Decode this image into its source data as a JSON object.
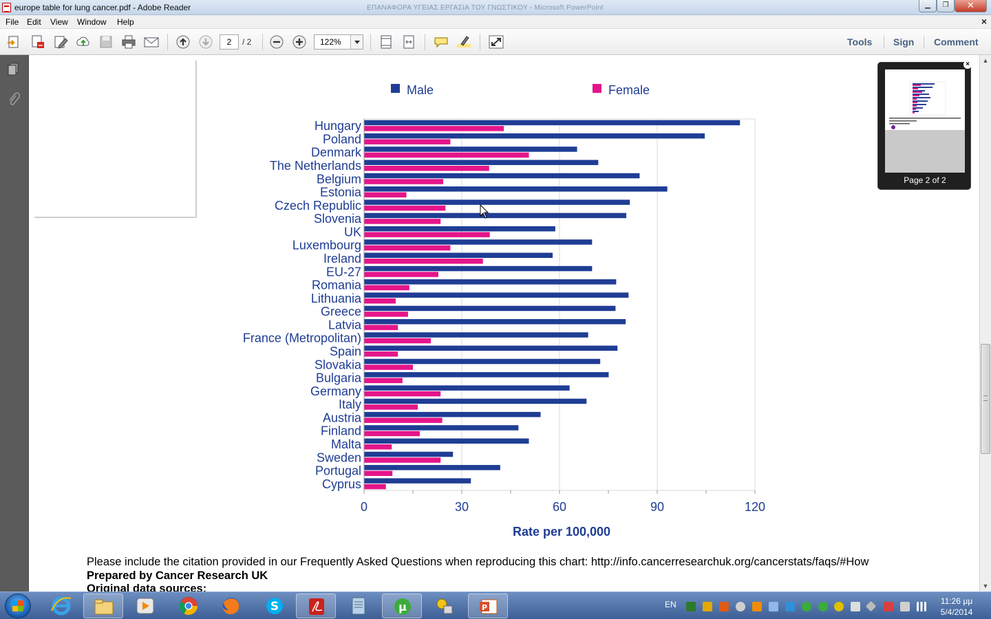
{
  "window": {
    "title": "europe table for lung cancer.pdf - Adobe Reader",
    "background_title": "ΕΠΑΝΑΦΟΡΑ ΥΓΕΙΑΣ ΕΡΓΑΣΙΑ ΤΟΥ ΓΝΩΣΤΙΚΟΥ - Microsoft PowerPoint"
  },
  "menu": {
    "file": "File",
    "edit": "Edit",
    "view": "View",
    "window": "Window",
    "help": "Help",
    "close_doc": "×"
  },
  "toolbar": {
    "current_page": "2",
    "page_total": "/ 2",
    "zoom": "122%",
    "tools": "Tools",
    "sign": "Sign",
    "comment": "Comment"
  },
  "thumbnail": {
    "label": "Page 2 of 2",
    "close": "×"
  },
  "document": {
    "note_citation": "Please include the citation provided in our Frequently Asked Questions when reproducing this chart: http://info.cancerresearchuk.org/cancerstats/faqs/#How",
    "note_prepared": "Prepared by Cancer Research UK",
    "note_sources": "Original data sources:"
  },
  "chart_data": {
    "type": "bar",
    "orientation": "horizontal",
    "categories": [
      "Hungary",
      "Poland",
      "Denmark",
      "The Netherlands",
      "Belgium",
      "Estonia",
      "Czech Republic",
      "Slovenia",
      "UK",
      "Luxembourg",
      "Ireland",
      "EU-27",
      "Romania",
      "Lithuania",
      "Greece",
      "Latvia",
      "France (Metropolitan)",
      "Spain",
      "Slovakia",
      "Bulgaria",
      "Germany",
      "Italy",
      "Austria",
      "Finland",
      "Malta",
      "Sweden",
      "Portugal",
      "Cyprus"
    ],
    "series": [
      {
        "name": "Male",
        "color": "#1f3d94",
        "values": [
          115.4,
          104.6,
          65.4,
          71.9,
          84.6,
          93.1,
          81.6,
          80.5,
          58.7,
          70.0,
          57.9,
          70.0,
          77.4,
          81.2,
          77.2,
          80.3,
          68.8,
          77.8,
          72.5,
          75.1,
          63.1,
          68.3,
          54.2,
          47.4,
          50.6,
          27.3,
          41.8,
          32.8
        ]
      },
      {
        "name": "Female",
        "color": "#e5158a",
        "values": [
          42.9,
          26.5,
          50.6,
          38.4,
          24.3,
          13.0,
          25.0,
          23.5,
          38.6,
          26.5,
          36.5,
          22.8,
          13.9,
          9.7,
          13.5,
          10.4,
          20.5,
          10.4,
          15.0,
          11.8,
          23.5,
          16.5,
          24.0,
          17.1,
          8.5,
          23.5,
          8.7,
          6.7
        ]
      }
    ],
    "xticks": [
      "0",
      "30",
      "60",
      "90",
      "120"
    ],
    "xlim": [
      0,
      120
    ],
    "xlabel": "Rate per 100,000",
    "grid": "vertical",
    "legend": "top"
  },
  "taskbar": {
    "lang": "EN",
    "time": "11:26 μμ",
    "date": "5/4/2014"
  },
  "icons": [
    "doc-icon",
    "paper-clip-icon",
    "page-up-icon",
    "page-down-icon",
    "zoom-out-icon",
    "zoom-in-icon",
    "comment-icon",
    "highlight-icon",
    "fullscreen-icon"
  ]
}
